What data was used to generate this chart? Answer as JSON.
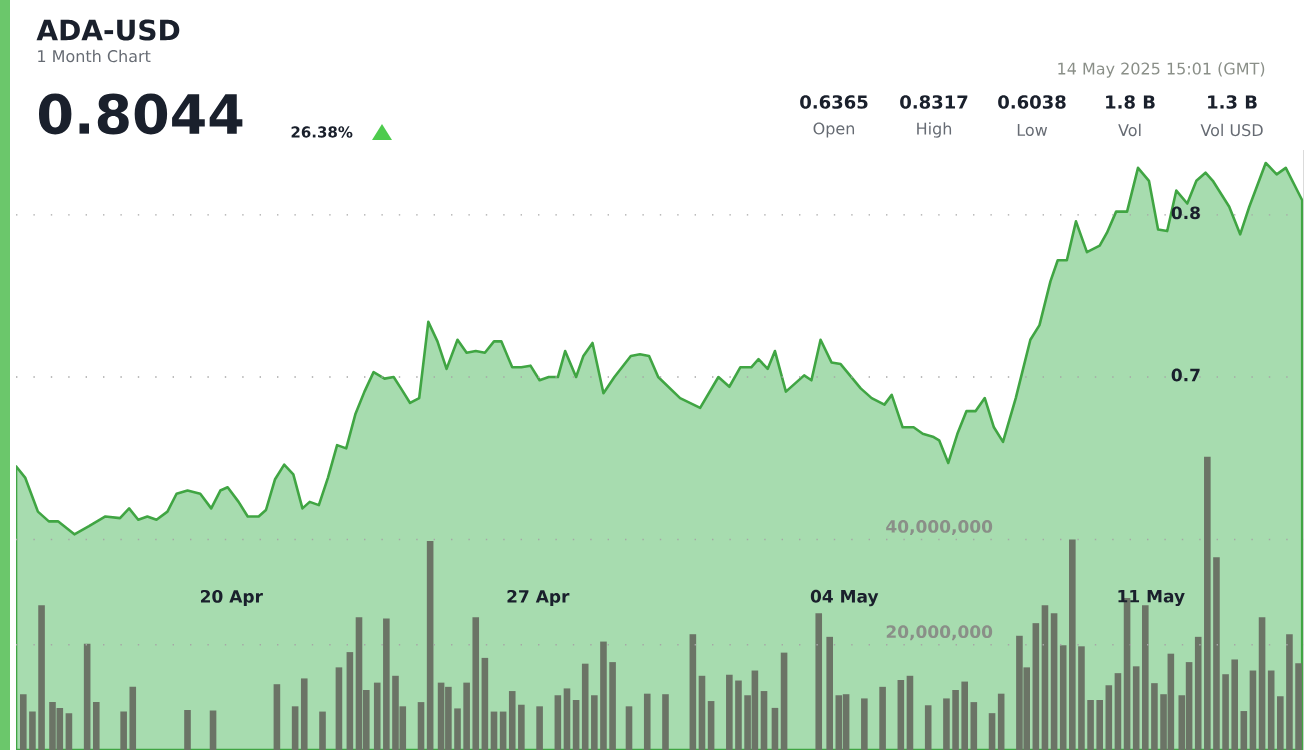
{
  "chart_data": {
    "type": "area",
    "title": "ADA-USD",
    "subtitle": "1 Month Chart",
    "annotations": [
      "0.8044",
      "26.38%",
      "14 May 2025 15:01 (GMT)",
      "0.6365",
      "Open",
      "0.8317",
      "High",
      "0.6038",
      "Low",
      "1.8 B",
      "Vol",
      "1.3 B",
      "Vol USD"
    ],
    "xlim": [
      "2025-04-15T02:00",
      "2025-05-14T12:00"
    ],
    "xticks": [
      {
        "value": "2025-04-20",
        "label": "20 Apr"
      },
      {
        "value": "2025-04-27",
        "label": "27 Apr"
      },
      {
        "value": "2025-05-04",
        "label": "04 May"
      },
      {
        "value": "2025-05-11",
        "label": "11 May"
      }
    ],
    "ylim": [
      0.47,
      0.84
    ],
    "yticks": [
      0.7,
      0.8
    ],
    "y2lim": [
      0,
      114000000
    ],
    "y2ticks": [
      {
        "value": 20000000,
        "label": "20,000,000"
      },
      {
        "value": 40000000,
        "label": "40,000,000"
      }
    ],
    "grid": "y",
    "series": [
      {
        "color": "#a7dcaf",
        "x": [
          "2025-04-15T02:00",
          "2025-04-15T07:00",
          "2025-04-15T14:00",
          "2025-04-15T20:00",
          "2025-04-16T01:00",
          "2025-04-16T10:00",
          "2025-04-16T18:00",
          "2025-04-17T03:00",
          "2025-04-17T11:00",
          "2025-04-17T16:00",
          "2025-04-17T21:00",
          "2025-04-18T02:00",
          "2025-04-18T07:00",
          "2025-04-18T13:00",
          "2025-04-18T18:00",
          "2025-04-19T00:00",
          "2025-04-19T07:00",
          "2025-04-19T13:00",
          "2025-04-19T18:00",
          "2025-04-19T22:00",
          "2025-04-20T04:00",
          "2025-04-20T09:00",
          "2025-04-20T15:00",
          "2025-04-20T19:00",
          "2025-04-21T00:00",
          "2025-04-21T05:00",
          "2025-04-21T10:00",
          "2025-04-21T15:00",
          "2025-04-21T19:00",
          "2025-04-22T00:00",
          "2025-04-22T05:00",
          "2025-04-22T10:00",
          "2025-04-22T15:00",
          "2025-04-22T20:00",
          "2025-04-23T01:00",
          "2025-04-23T06:00",
          "2025-04-23T12:00",
          "2025-04-23T17:00",
          "2025-04-23T21:00",
          "2025-04-24T02:00",
          "2025-04-24T07:00",
          "2025-04-24T12:00",
          "2025-04-24T17:00",
          "2025-04-24T22:00",
          "2025-04-25T04:00",
          "2025-04-25T09:00",
          "2025-04-25T14:00",
          "2025-04-25T19:00",
          "2025-04-26T00:00",
          "2025-04-26T04:00",
          "2025-04-26T10:00",
          "2025-04-26T15:00",
          "2025-04-26T20:00",
          "2025-04-27T01:00",
          "2025-04-27T06:00",
          "2025-04-27T11:00",
          "2025-04-27T15:00",
          "2025-04-27T21:00",
          "2025-04-28T01:00",
          "2025-04-28T06:00",
          "2025-04-28T12:00",
          "2025-04-28T18:00",
          "2025-04-29T03:00",
          "2025-04-29T08:00",
          "2025-04-29T13:00",
          "2025-04-29T18:00",
          "2025-04-30T06:00",
          "2025-04-30T17:00",
          "2025-05-01T03:00",
          "2025-05-01T09:00",
          "2025-05-01T15:00",
          "2025-05-01T21:00",
          "2025-05-02T01:00",
          "2025-05-02T06:00",
          "2025-05-02T10:00",
          "2025-05-02T16:00",
          "2025-05-03T02:00",
          "2025-05-03T06:00",
          "2025-05-03T11:00",
          "2025-05-03T17:00",
          "2025-05-03T22:00",
          "2025-05-04T09:00",
          "2025-05-04T15:00",
          "2025-05-04T22:00",
          "2025-05-05T02:00",
          "2025-05-05T08:00",
          "2025-05-05T14:00",
          "2025-05-05T19:00",
          "2025-05-06T01:00",
          "2025-05-06T04:00",
          "2025-05-06T09:00",
          "2025-05-06T14:00",
          "2025-05-06T19:00",
          "2025-05-07T00:00",
          "2025-05-07T05:00",
          "2025-05-07T10:00",
          "2025-05-07T15:00",
          "2025-05-07T22:00",
          "2025-05-08T06:00",
          "2025-05-08T11:00",
          "2025-05-08T17:00",
          "2025-05-08T21:00",
          "2025-05-09T02:00",
          "2025-05-09T07:00",
          "2025-05-09T13:00",
          "2025-05-09T20:00",
          "2025-05-10T00:00",
          "2025-05-10T05:00",
          "2025-05-10T11:00",
          "2025-05-10T17:00",
          "2025-05-10T23:00",
          "2025-05-11T04:00",
          "2025-05-11T09:00",
          "2025-05-11T14:00",
          "2025-05-11T20:00",
          "2025-05-12T01:00",
          "2025-05-12T06:00",
          "2025-05-12T10:00",
          "2025-05-12T19:00",
          "2025-05-13T01:00",
          "2025-05-13T06:00",
          "2025-05-13T15:00",
          "2025-05-13T21:00",
          "2025-05-14T02:00",
          "2025-05-14T11:00"
        ],
        "values": [
          0.645,
          0.638,
          0.617,
          0.611,
          0.611,
          0.603,
          0.608,
          0.614,
          0.613,
          0.619,
          0.612,
          0.614,
          0.612,
          0.617,
          0.628,
          0.63,
          0.628,
          0.619,
          0.63,
          0.632,
          0.623,
          0.614,
          0.614,
          0.618,
          0.637,
          0.646,
          0.64,
          0.619,
          0.623,
          0.621,
          0.638,
          0.658,
          0.656,
          0.677,
          0.691,
          0.703,
          0.699,
          0.7,
          0.693,
          0.684,
          0.687,
          0.734,
          0.722,
          0.705,
          0.723,
          0.715,
          0.716,
          0.715,
          0.722,
          0.722,
          0.706,
          0.706,
          0.707,
          0.698,
          0.7,
          0.7,
          0.716,
          0.7,
          0.713,
          0.721,
          0.69,
          0.7,
          0.713,
          0.714,
          0.713,
          0.7,
          0.687,
          0.681,
          0.7,
          0.694,
          0.706,
          0.706,
          0.711,
          0.705,
          0.716,
          0.691,
          0.701,
          0.698,
          0.723,
          0.709,
          0.708,
          0.693,
          0.687,
          0.683,
          0.689,
          0.669,
          0.669,
          0.665,
          0.663,
          0.661,
          0.647,
          0.665,
          0.679,
          0.679,
          0.687,
          0.669,
          0.66,
          0.687,
          0.723,
          0.732,
          0.759,
          0.772,
          0.772,
          0.796,
          0.777,
          0.781,
          0.789,
          0.802,
          0.802,
          0.829,
          0.821,
          0.791,
          0.79,
          0.815,
          0.807,
          0.821,
          0.826,
          0.821,
          0.805,
          0.788,
          0.805,
          0.832,
          0.825,
          0.829,
          0.809
        ]
      },
      {
        "type": "bar",
        "axis": "y2",
        "color": "#6b7466",
        "x": [
          "2025-04-15T06:00",
          "2025-04-15T11:00",
          "2025-04-15T16:00",
          "2025-04-15T22:00",
          "2025-04-16T02:00",
          "2025-04-16T07:00",
          "2025-04-16T17:00",
          "2025-04-16T22:00",
          "2025-04-17T13:00",
          "2025-04-17T18:00",
          "2025-04-19T00:00",
          "2025-04-19T14:00",
          "2025-04-21T01:00",
          "2025-04-21T11:00",
          "2025-04-21T16:00",
          "2025-04-22T02:00",
          "2025-04-22T11:00",
          "2025-04-22T17:00",
          "2025-04-22T22:00",
          "2025-04-23T02:00",
          "2025-04-23T08:00",
          "2025-04-23T13:00",
          "2025-04-23T18:00",
          "2025-04-23T22:00",
          "2025-04-24T08:00",
          "2025-04-24T13:00",
          "2025-04-24T19:00",
          "2025-04-24T23:00",
          "2025-04-25T04:00",
          "2025-04-25T09:00",
          "2025-04-25T14:00",
          "2025-04-25T19:00",
          "2025-04-26T00:00",
          "2025-04-26T05:00",
          "2025-04-26T10:00",
          "2025-04-26T15:00",
          "2025-04-27T01:00",
          "2025-04-27T11:00",
          "2025-04-27T16:00",
          "2025-04-27T21:00",
          "2025-04-28T02:00",
          "2025-04-28T07:00",
          "2025-04-28T12:00",
          "2025-04-28T17:00",
          "2025-04-29T02:00",
          "2025-04-29T12:00",
          "2025-04-29T22:00",
          "2025-04-30T13:00",
          "2025-04-30T18:00",
          "2025-04-30T23:00",
          "2025-05-01T09:00",
          "2025-05-01T14:00",
          "2025-05-01T19:00",
          "2025-05-01T23:00",
          "2025-05-02T04:00",
          "2025-05-02T10:00",
          "2025-05-02T15:00",
          "2025-05-03T10:00",
          "2025-05-03T16:00",
          "2025-05-03T21:00",
          "2025-05-04T01:00",
          "2025-05-04T11:00",
          "2025-05-04T21:00",
          "2025-05-05T07:00",
          "2025-05-05T12:00",
          "2025-05-05T22:00",
          "2025-05-06T08:00",
          "2025-05-06T13:00",
          "2025-05-06T18:00",
          "2025-05-06T23:00",
          "2025-05-07T09:00",
          "2025-05-07T14:00",
          "2025-05-08T00:00",
          "2025-05-08T04:00",
          "2025-05-08T09:00",
          "2025-05-08T14:00",
          "2025-05-08T19:00",
          "2025-05-09T00:00",
          "2025-05-09T05:00",
          "2025-05-09T10:00",
          "2025-05-09T15:00",
          "2025-05-09T20:00",
          "2025-05-10T01:00",
          "2025-05-10T06:00",
          "2025-05-10T11:00",
          "2025-05-10T16:00",
          "2025-05-10T21:00",
          "2025-05-11T02:00",
          "2025-05-11T07:00",
          "2025-05-11T11:00",
          "2025-05-11T17:00",
          "2025-05-11T21:00",
          "2025-05-12T02:00",
          "2025-05-12T07:00",
          "2025-05-12T12:00",
          "2025-05-12T17:00",
          "2025-05-12T22:00",
          "2025-05-13T03:00",
          "2025-05-13T08:00",
          "2025-05-13T13:00",
          "2025-05-13T18:00",
          "2025-05-13T23:00",
          "2025-05-14T04:00",
          "2025-05-14T09:00"
        ],
        "values": [
          10600000,
          7300000,
          27500000,
          9100000,
          8000000,
          7000000,
          20200000,
          9100000,
          7300000,
          12000000,
          7600000,
          7500000,
          12500000,
          8300000,
          13600000,
          7300000,
          15700000,
          18600000,
          25200000,
          11400000,
          12800000,
          25000000,
          14100000,
          8300000,
          9100000,
          39700000,
          12800000,
          12000000,
          7900000,
          12800000,
          25200000,
          17500000,
          7300000,
          7300000,
          11200000,
          8600000,
          8300000,
          10400000,
          11700000,
          9500000,
          16400000,
          10400000,
          20600000,
          16700000,
          8300000,
          10700000,
          10600000,
          22000000,
          14100000,
          9300000,
          14300000,
          13200000,
          10400000,
          15100000,
          11200000,
          8000000,
          18500000,
          26000000,
          21500000,
          10400000,
          10600000,
          9800000,
          12000000,
          13300000,
          14100000,
          8500000,
          9800000,
          11400000,
          13000000,
          9100000,
          7000000,
          10700000,
          21700000,
          15700000,
          24100000,
          27500000,
          26000000,
          19900000,
          40000000,
          19700000,
          9500000,
          9500000,
          12300000,
          14600000,
          28900000,
          15900000,
          27500000,
          12700000,
          10600000,
          18300000,
          10400000,
          16700000,
          21500000,
          55700000,
          36600000,
          14400000,
          17200000,
          7400000,
          15100000,
          25200000,
          15100000,
          10200000,
          22000000,
          16500000
        ]
      }
    ]
  }
}
